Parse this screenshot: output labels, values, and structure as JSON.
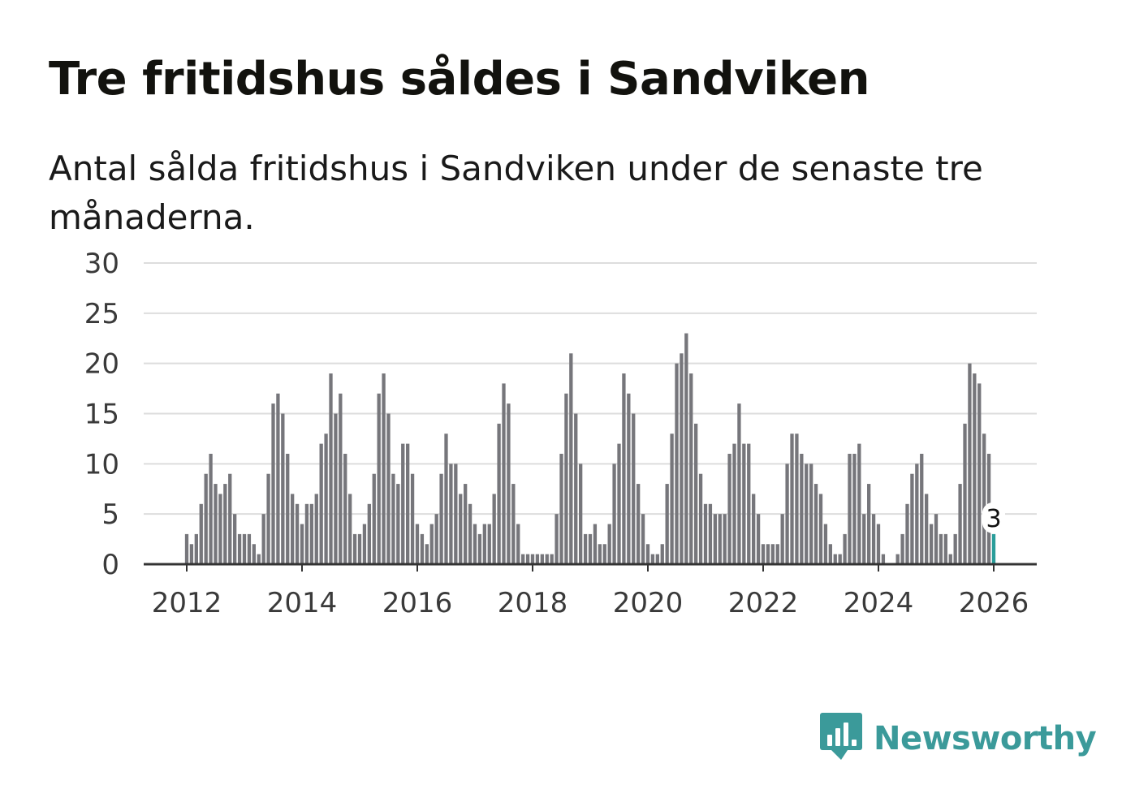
{
  "header": {
    "title": "Tre fritidshus såldes i Sandviken",
    "subtitle": "Antal sålda fritidshus i Sandviken under de senaste tre månaderna."
  },
  "branding": {
    "name": "Newsworthy",
    "icon": "newsworthy-logo-icon",
    "color": "#3b9a9a"
  },
  "colors": {
    "bar": "#76767b",
    "highlight": "#2a9d9a",
    "grid": "#dddddd",
    "axis": "#333333"
  },
  "chart_data": {
    "type": "bar",
    "title": "Tre fritidshus såldes i Sandviken",
    "xlabel": "",
    "ylabel": "",
    "ylim": [
      0,
      30
    ],
    "yticks": [
      "0",
      "5",
      "10",
      "15",
      "20",
      "25",
      "30"
    ],
    "xticks": [
      "2012",
      "2014",
      "2016",
      "2018",
      "2020",
      "2022",
      "2024",
      "2026"
    ],
    "start": "2012-01",
    "interval": "monthly",
    "grid": true,
    "values": [
      3,
      2,
      3,
      6,
      9,
      11,
      8,
      7,
      8,
      9,
      5,
      3,
      3,
      3,
      2,
      1,
      5,
      9,
      16,
      17,
      15,
      11,
      7,
      6,
      4,
      6,
      6,
      7,
      12,
      13,
      19,
      15,
      17,
      11,
      7,
      3,
      3,
      4,
      6,
      9,
      17,
      19,
      15,
      9,
      8,
      12,
      12,
      9,
      4,
      3,
      2,
      4,
      5,
      9,
      13,
      10,
      10,
      7,
      8,
      6,
      4,
      3,
      4,
      4,
      7,
      14,
      18,
      16,
      8,
      4,
      1,
      1,
      1,
      1,
      1,
      1,
      1,
      5,
      11,
      17,
      21,
      15,
      10,
      3,
      3,
      4,
      2,
      2,
      4,
      10,
      12,
      19,
      17,
      15,
      8,
      5,
      2,
      1,
      1,
      2,
      8,
      13,
      20,
      21,
      23,
      19,
      14,
      9,
      6,
      6,
      5,
      5,
      5,
      11,
      12,
      16,
      12,
      12,
      7,
      5,
      2,
      2,
      2,
      2,
      5,
      10,
      13,
      13,
      11,
      10,
      10,
      8,
      7,
      4,
      2,
      1,
      1,
      3,
      11,
      11,
      12,
      5,
      8,
      5,
      4,
      1,
      0,
      0,
      1,
      3,
      6,
      9,
      10,
      11,
      7,
      4,
      5,
      3,
      3,
      1,
      3,
      8,
      14,
      20,
      19,
      18,
      13,
      11,
      3
    ],
    "highlight": {
      "index": 168,
      "value": 3,
      "label": "3"
    }
  }
}
